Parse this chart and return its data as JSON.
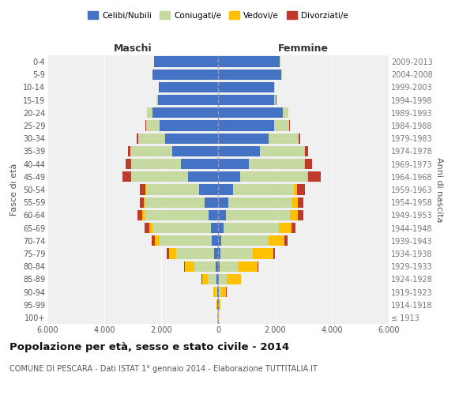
{
  "age_groups": [
    "100+",
    "95-99",
    "90-94",
    "85-89",
    "80-84",
    "75-79",
    "70-74",
    "65-69",
    "60-64",
    "55-59",
    "50-54",
    "45-49",
    "40-44",
    "35-39",
    "30-34",
    "25-29",
    "20-24",
    "15-19",
    "10-14",
    "5-9",
    "0-4"
  ],
  "birth_years": [
    "≤ 1913",
    "1914-1918",
    "1919-1923",
    "1924-1928",
    "1929-1933",
    "1934-1938",
    "1939-1943",
    "1944-1948",
    "1949-1953",
    "1954-1958",
    "1959-1963",
    "1964-1968",
    "1969-1973",
    "1974-1978",
    "1979-1983",
    "1984-1988",
    "1989-1993",
    "1994-1998",
    "1999-2003",
    "2004-2008",
    "2009-2013"
  ],
  "m_cel": [
    10,
    15,
    25,
    50,
    90,
    130,
    210,
    260,
    330,
    480,
    680,
    1050,
    1300,
    1620,
    1850,
    2050,
    2300,
    2100,
    2050,
    2300,
    2250
  ],
  "m_con": [
    3,
    25,
    70,
    320,
    750,
    1350,
    1850,
    2050,
    2250,
    2080,
    1850,
    2000,
    1750,
    1450,
    950,
    480,
    190,
    55,
    15,
    8,
    3
  ],
  "m_ved": [
    2,
    18,
    75,
    190,
    340,
    240,
    170,
    115,
    75,
    38,
    18,
    8,
    5,
    5,
    4,
    4,
    4,
    4,
    4,
    4,
    4
  ],
  "m_div": [
    1,
    4,
    8,
    18,
    28,
    75,
    115,
    145,
    175,
    145,
    195,
    290,
    190,
    95,
    45,
    18,
    8,
    4,
    4,
    4,
    4
  ],
  "f_nub": [
    10,
    15,
    25,
    35,
    55,
    75,
    115,
    195,
    275,
    370,
    530,
    780,
    1080,
    1480,
    1780,
    1980,
    2280,
    1980,
    1980,
    2230,
    2180
  ],
  "f_con": [
    3,
    22,
    75,
    280,
    650,
    1150,
    1650,
    1950,
    2250,
    2250,
    2150,
    2350,
    1950,
    1550,
    1050,
    520,
    185,
    55,
    15,
    8,
    3
  ],
  "f_ved": [
    4,
    45,
    190,
    480,
    680,
    730,
    580,
    435,
    285,
    190,
    95,
    45,
    28,
    18,
    8,
    8,
    4,
    4,
    4,
    4,
    4
  ],
  "f_div": [
    1,
    4,
    8,
    12,
    22,
    55,
    95,
    145,
    195,
    195,
    290,
    440,
    240,
    115,
    55,
    18,
    8,
    4,
    4,
    4,
    4
  ],
  "colors": {
    "celibi_nubili": "#4472c4",
    "coniugati": "#c5d9a0",
    "vedovi": "#ffc000",
    "divorziati": "#c0392b"
  },
  "xlim": 6000,
  "xtick_labels": [
    "6.000",
    "4.000",
    "2.000",
    "0",
    "2.000",
    "4.000",
    "6.000"
  ],
  "title": "Popolazione per età, sesso e stato civile - 2014",
  "subtitle": "COMUNE DI PESCARA - Dati ISTAT 1° gennaio 2014 - Elaborazione TUTTITALIA.IT",
  "ylabel": "Fasce di età",
  "ylabel_right": "Anni di nascita",
  "legend_labels": [
    "Celibi/Nubili",
    "Coniugati/e",
    "Vedovi/e",
    "Divorziati/e"
  ],
  "maschi_label": "Maschi",
  "femmine_label": "Femmine",
  "bg_color": "#f0f0f0"
}
